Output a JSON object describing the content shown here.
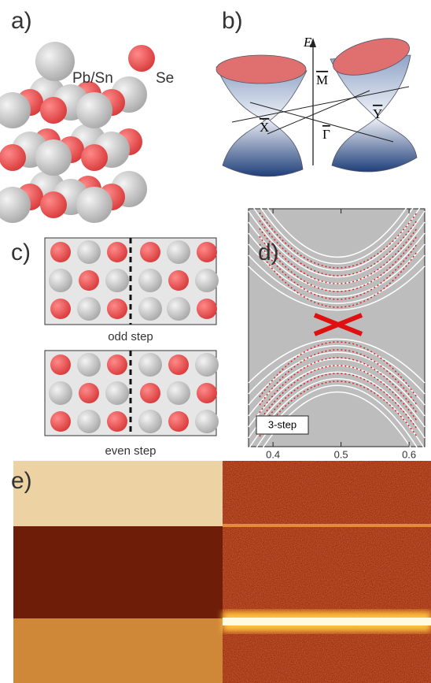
{
  "panels": [
    {
      "label": "a)",
      "texts": [
        "Pb/Sn",
        "Se"
      ]
    },
    {
      "label": "b)",
      "texts": [
        "E",
        "M",
        "Y",
        "X",
        "Γ"
      ]
    },
    {
      "label": "c)",
      "texts": [
        "odd step",
        "even step"
      ]
    },
    {
      "label": "d)",
      "inset_label": "3-step",
      "xlim": [
        0.364,
        0.623
      ],
      "xticks": [
        0.4,
        0.5,
        0.6
      ]
    },
    {
      "label": "e)"
    }
  ]
}
